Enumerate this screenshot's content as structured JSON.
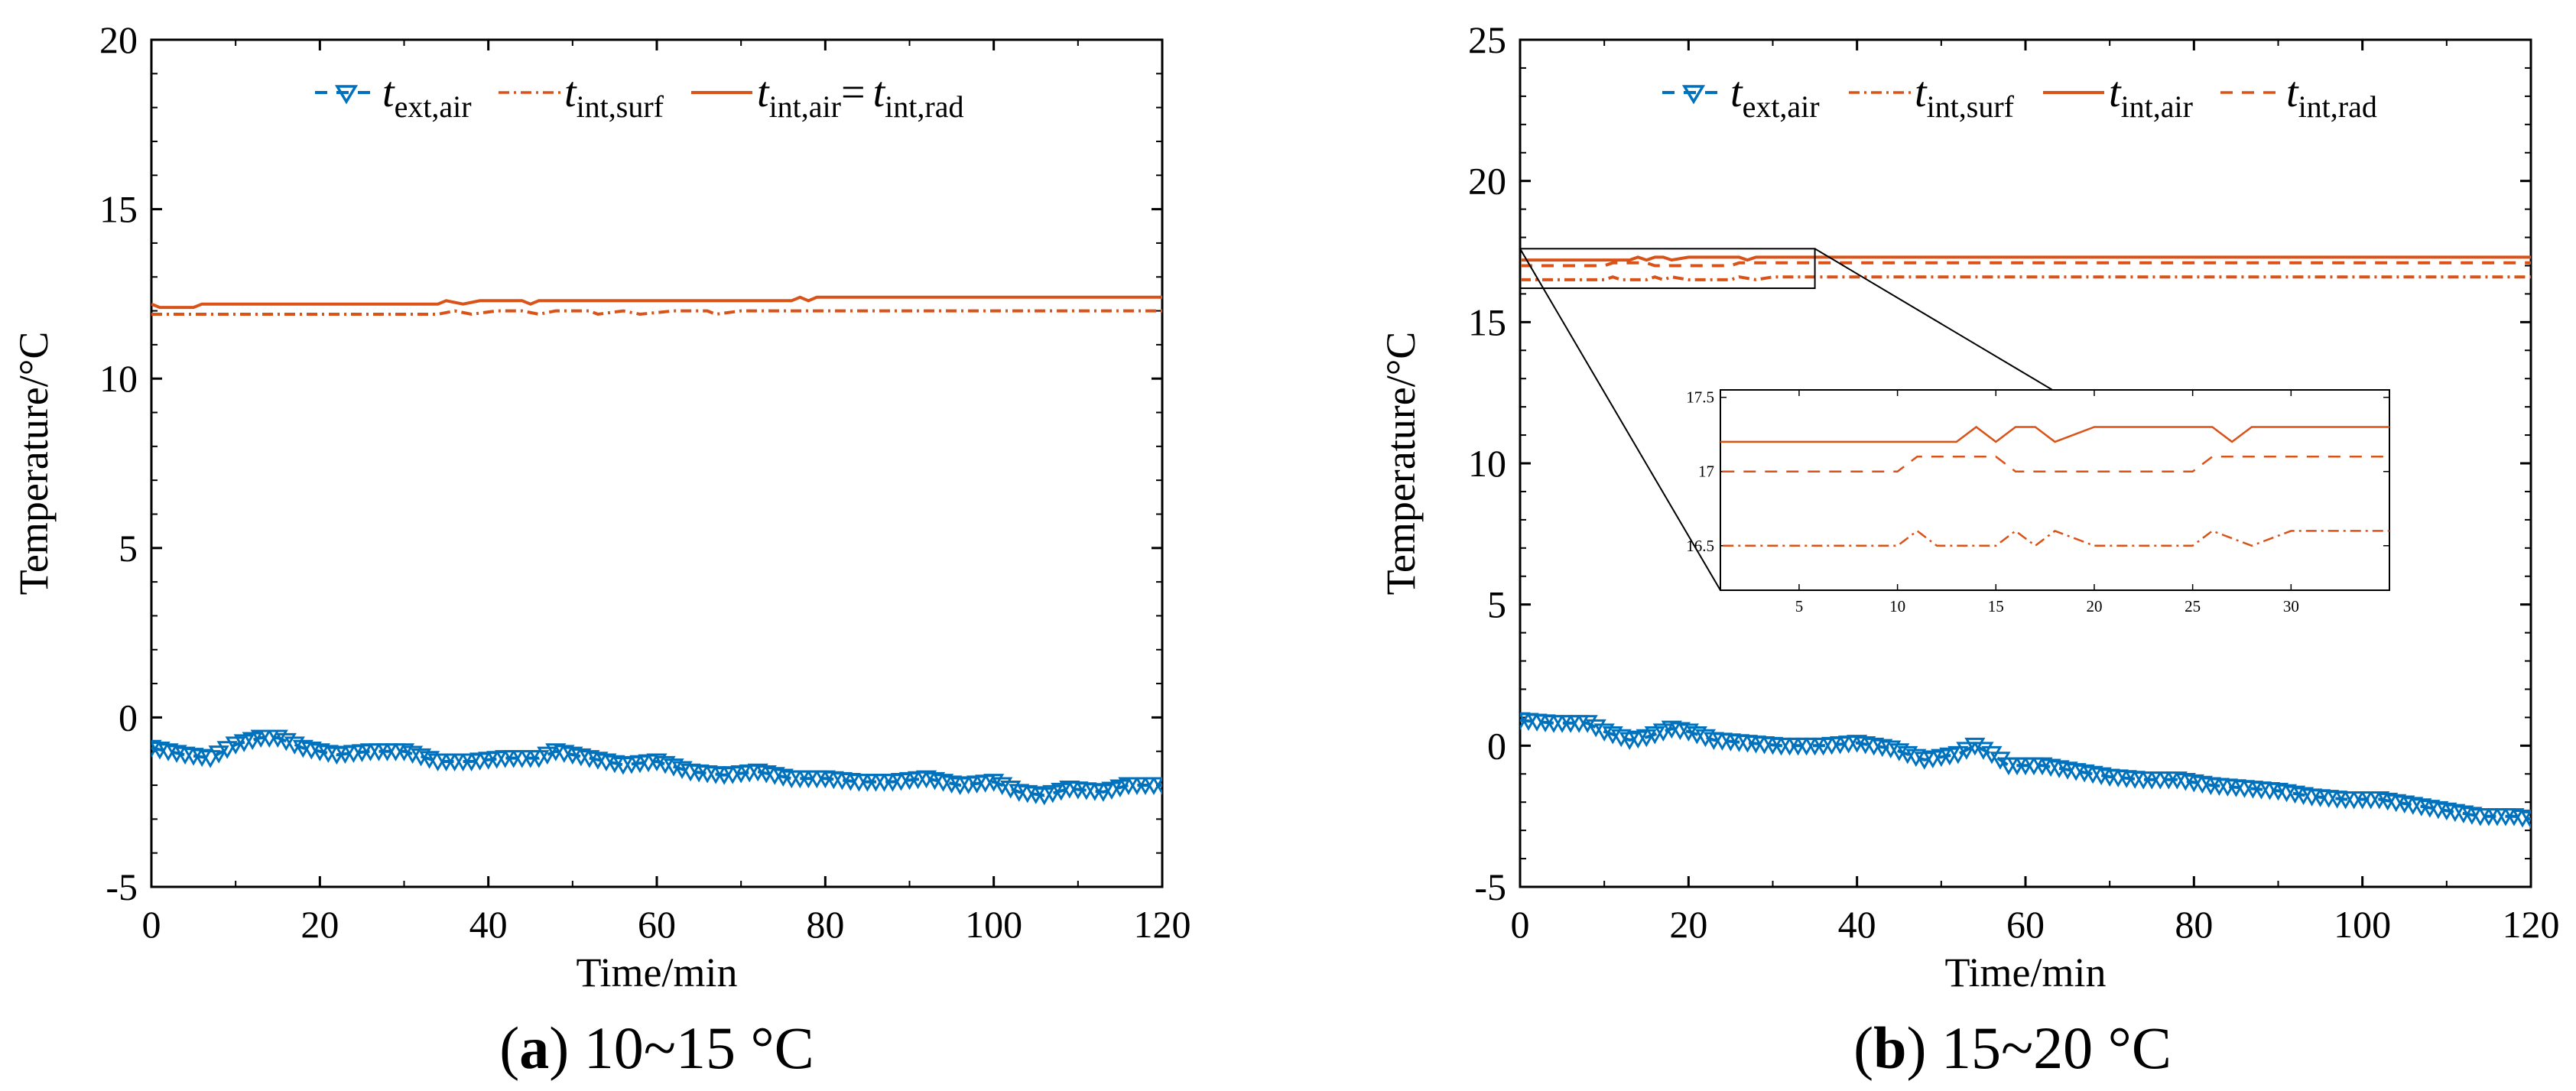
{
  "colors": {
    "blue": "#0072BD",
    "orange": "#D95319",
    "axis": "#000000",
    "background": "#ffffff"
  },
  "chart_data": [
    {
      "type": "line",
      "panel": "a",
      "caption_letter": "a",
      "caption_open": "(",
      "caption_close": ")",
      "caption_text": " 10~15 °C",
      "xlabel": "Time/min",
      "ylabel": "Temperature/°C",
      "xlim": [
        0,
        120
      ],
      "ylim": [
        -5,
        20
      ],
      "xticks": [
        0,
        20,
        40,
        60,
        80,
        100,
        120
      ],
      "yticks": [
        -5,
        0,
        5,
        10,
        15,
        20
      ],
      "ytick_labels": [
        "-5",
        "0",
        "5",
        "10",
        "15",
        "20"
      ],
      "legend_eq": "=",
      "series": [
        {
          "name": "t_ext,air",
          "base": "t",
          "sub": "ext,air",
          "color": "#0072BD",
          "style": "dashed",
          "marker": "triangle-down",
          "points": [
            [
              0,
              -0.9
            ],
            [
              4,
              -1.1
            ],
            [
              7,
              -1.2
            ],
            [
              10,
              -0.8
            ],
            [
              13,
              -0.6
            ],
            [
              15,
              -0.6
            ],
            [
              18,
              -0.9
            ],
            [
              22,
              -1.1
            ],
            [
              26,
              -1.0
            ],
            [
              30,
              -1.0
            ],
            [
              34,
              -1.3
            ],
            [
              38,
              -1.3
            ],
            [
              42,
              -1.2
            ],
            [
              46,
              -1.2
            ],
            [
              48,
              -1.0
            ],
            [
              52,
              -1.2
            ],
            [
              56,
              -1.4
            ],
            [
              60,
              -1.3
            ],
            [
              64,
              -1.6
            ],
            [
              68,
              -1.7
            ],
            [
              72,
              -1.6
            ],
            [
              76,
              -1.8
            ],
            [
              80,
              -1.8
            ],
            [
              84,
              -1.9
            ],
            [
              88,
              -1.9
            ],
            [
              92,
              -1.8
            ],
            [
              96,
              -2.0
            ],
            [
              100,
              -1.9
            ],
            [
              103,
              -2.2
            ],
            [
              106,
              -2.3
            ],
            [
              109,
              -2.1
            ],
            [
              113,
              -2.2
            ],
            [
              116,
              -2.0
            ],
            [
              120,
              -2.0
            ]
          ]
        },
        {
          "name": "t_int,surf",
          "base": "t",
          "sub": "int,surf",
          "color": "#D95319",
          "style": "dashdot",
          "points": [
            [
              0,
              11.9
            ],
            [
              34,
              11.9
            ],
            [
              36,
              12.0
            ],
            [
              38,
              11.9
            ],
            [
              41,
              12.0
            ],
            [
              44,
              12.0
            ],
            [
              46,
              11.9
            ],
            [
              48,
              12.0
            ],
            [
              52,
              12.0
            ],
            [
              53,
              11.9
            ],
            [
              56,
              12.0
            ],
            [
              58,
              11.9
            ],
            [
              62,
              12.0
            ],
            [
              66,
              12.0
            ],
            [
              67,
              11.9
            ],
            [
              70,
              12.0
            ],
            [
              120,
              12.0
            ]
          ]
        },
        {
          "name": "t_int,air = t_int,rad",
          "base": "t",
          "sub": "int,air",
          "base2": "t",
          "sub2": "int,rad",
          "color": "#D95319",
          "style": "solid",
          "points": [
            [
              0,
              12.2
            ],
            [
              1,
              12.1
            ],
            [
              5,
              12.1
            ],
            [
              6,
              12.2
            ],
            [
              34,
              12.2
            ],
            [
              35,
              12.3
            ],
            [
              37,
              12.2
            ],
            [
              39,
              12.3
            ],
            [
              44,
              12.3
            ],
            [
              45,
              12.2
            ],
            [
              46,
              12.3
            ],
            [
              76,
              12.3
            ],
            [
              77,
              12.4
            ],
            [
              78,
              12.3
            ],
            [
              79,
              12.4
            ],
            [
              120,
              12.4
            ]
          ]
        }
      ]
    },
    {
      "type": "line",
      "panel": "b",
      "caption_letter": "b",
      "caption_open": "(",
      "caption_close": ")",
      "caption_text": " 15~20 °C",
      "xlabel": "Time/min",
      "ylabel": "Temperature/°C",
      "xlim": [
        0,
        120
      ],
      "ylim": [
        -5,
        25
      ],
      "xticks": [
        0,
        20,
        40,
        60,
        80,
        100,
        120
      ],
      "yticks": [
        -5,
        0,
        5,
        10,
        15,
        20,
        25
      ],
      "ytick_labels": [
        "-5",
        "0",
        "5",
        "10",
        "15",
        "20",
        "25"
      ],
      "series": [
        {
          "name": "t_ext,air",
          "base": "t",
          "sub": "ext,air",
          "color": "#0072BD",
          "style": "dashed",
          "marker": "triangle-down",
          "points": [
            [
              0,
              0.9
            ],
            [
              4,
              0.8
            ],
            [
              8,
              0.8
            ],
            [
              10,
              0.5
            ],
            [
              13,
              0.2
            ],
            [
              15,
              0.3
            ],
            [
              18,
              0.6
            ],
            [
              20,
              0.5
            ],
            [
              23,
              0.2
            ],
            [
              27,
              0.1
            ],
            [
              31,
              0.0
            ],
            [
              36,
              0.0
            ],
            [
              40,
              0.1
            ],
            [
              44,
              -0.1
            ],
            [
              48,
              -0.5
            ],
            [
              52,
              -0.3
            ],
            [
              54,
              0.0
            ],
            [
              56,
              -0.3
            ],
            [
              58,
              -0.7
            ],
            [
              62,
              -0.7
            ],
            [
              66,
              -0.9
            ],
            [
              70,
              -1.1
            ],
            [
              74,
              -1.2
            ],
            [
              78,
              -1.2
            ],
            [
              82,
              -1.4
            ],
            [
              86,
              -1.5
            ],
            [
              90,
              -1.6
            ],
            [
              94,
              -1.8
            ],
            [
              98,
              -1.9
            ],
            [
              102,
              -1.9
            ],
            [
              106,
              -2.1
            ],
            [
              110,
              -2.3
            ],
            [
              114,
              -2.5
            ],
            [
              118,
              -2.5
            ],
            [
              120,
              -2.6
            ]
          ]
        },
        {
          "name": "t_int,surf",
          "base": "t",
          "sub": "int,surf",
          "color": "#D95319",
          "style": "dashdot",
          "points": [
            [
              0,
              16.5
            ],
            [
              10,
              16.5
            ],
            [
              11,
              16.6
            ],
            [
              12,
              16.5
            ],
            [
              15,
              16.5
            ],
            [
              16,
              16.6
            ],
            [
              17,
              16.5
            ],
            [
              18,
              16.6
            ],
            [
              20,
              16.5
            ],
            [
              25,
              16.5
            ],
            [
              26,
              16.6
            ],
            [
              28,
              16.5
            ],
            [
              30,
              16.6
            ],
            [
              120,
              16.6
            ]
          ]
        },
        {
          "name": "t_int,air",
          "base": "t",
          "sub": "int,air",
          "color": "#D95319",
          "style": "solid",
          "points": [
            [
              0,
              17.2
            ],
            [
              13,
              17.2
            ],
            [
              14,
              17.3
            ],
            [
              15,
              17.2
            ],
            [
              16,
              17.3
            ],
            [
              17,
              17.3
            ],
            [
              18,
              17.2
            ],
            [
              20,
              17.3
            ],
            [
              26,
              17.3
            ],
            [
              27,
              17.2
            ],
            [
              28,
              17.3
            ],
            [
              120,
              17.3
            ]
          ]
        },
        {
          "name": "t_int,rad",
          "base": "t",
          "sub": "int,rad",
          "color": "#D95319",
          "style": "dashed",
          "points": [
            [
              0,
              17.0
            ],
            [
              10,
              17.0
            ],
            [
              11,
              17.1
            ],
            [
              15,
              17.1
            ],
            [
              16,
              17.0
            ],
            [
              25,
              17.0
            ],
            [
              26,
              17.1
            ],
            [
              120,
              17.1
            ]
          ]
        }
      ],
      "inset": {
        "source_xlim": [
          0,
          35
        ],
        "source_ylim": [
          16.2,
          17.6
        ],
        "xlim": [
          1,
          35
        ],
        "ylim": [
          16.2,
          17.55
        ],
        "xticks": [
          5,
          10,
          15,
          20,
          25,
          30
        ],
        "yticks": [
          16.5,
          17,
          17.5
        ],
        "ytick_labels": [
          "16.5",
          "17",
          "17.5"
        ]
      }
    }
  ]
}
